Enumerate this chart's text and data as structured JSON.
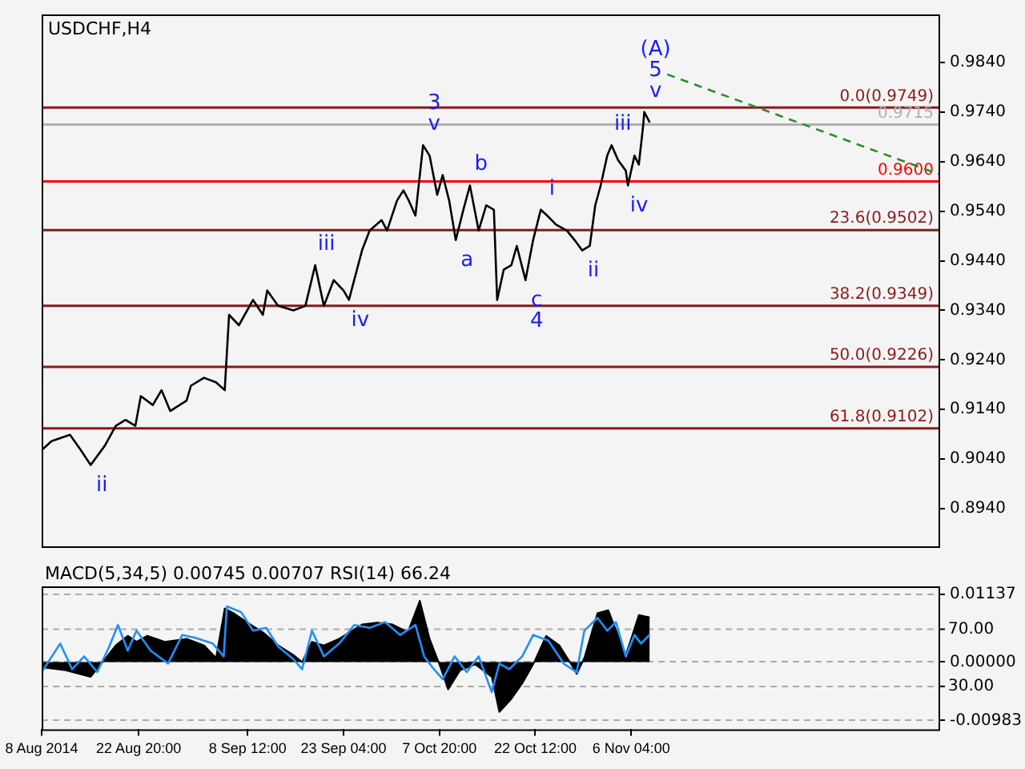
{
  "chart_data": [
    {
      "type": "line",
      "title": "USDCHF,H4",
      "xlim": [
        "2014-08-08T00:00",
        "2014-12-23T04:00"
      ],
      "ylim": [
        0.8864,
        0.9937
      ],
      "tick_labels": "y",
      "yticks": [
        {
          "value": 0.894,
          "label": "0.8940"
        },
        {
          "value": 0.904,
          "label": "0.9040"
        },
        {
          "value": 0.914,
          "label": "0.9140"
        },
        {
          "value": 0.924,
          "label": "0.9240"
        },
        {
          "value": 0.934,
          "label": "0.9340"
        },
        {
          "value": 0.944,
          "label": "0.9440"
        },
        {
          "value": 0.954,
          "label": "0.9540"
        },
        {
          "value": 0.964,
          "label": "0.9640"
        },
        {
          "value": 0.974,
          "label": "0.9740"
        },
        {
          "value": 0.984,
          "label": "0.9840"
        }
      ],
      "series": [
        {
          "type": "line",
          "color": "#000000",
          "x": [
            "2014-08-08T00:00",
            "2014-08-09T12:00",
            "2014-08-12T08:00",
            "2014-08-14T00:00",
            "2014-08-15T12:00",
            "2014-08-17T16:00",
            "2014-08-19T08:00",
            "2014-08-20T20:00",
            "2014-08-22T08:00",
            "2014-08-23T04:00",
            "2014-08-25T00:00",
            "2014-08-26T08:00",
            "2014-08-27T16:00",
            "2014-08-30T04:00",
            "2014-08-30T20:00",
            "2014-09-01T20:00",
            "2014-09-03T16:00",
            "2014-09-05T00:00",
            "2014-09-05T16:00",
            "2014-09-07T04:00",
            "2014-09-09T08:00",
            "2014-09-10T20:00",
            "2014-09-11T12:00",
            "2014-09-13T04:00",
            "2014-09-15T12:00",
            "2014-09-17T08:00",
            "2014-09-18T20:00",
            "2014-09-20T04:00",
            "2014-09-21T16:00",
            "2014-09-23T04:00",
            "2014-09-24T00:00",
            "2014-09-26T00:00",
            "2014-09-27T04:00",
            "2014-09-29T00:00",
            "2014-09-29T20:00",
            "2014-10-01T08:00",
            "2014-10-02T08:00",
            "2014-10-03T04:00",
            "2014-10-04T04:00",
            "2014-10-05T08:00",
            "2014-10-06T08:00",
            "2014-10-07T12:00",
            "2014-10-08T08:00",
            "2014-10-09T08:00",
            "2014-10-10T08:00",
            "2014-10-11T12:00",
            "2014-10-12T12:00",
            "2014-10-13T20:00",
            "2014-10-15T00:00",
            "2014-10-16T04:00",
            "2014-10-16T16:00",
            "2014-10-17T16:00",
            "2014-10-18T20:00",
            "2014-10-19T16:00",
            "2014-10-21T00:00",
            "2014-10-22T04:00",
            "2014-10-23T08:00",
            "2014-10-24T08:00",
            "2014-10-25T16:00",
            "2014-10-27T08:00",
            "2014-10-28T12:00",
            "2014-10-29T16:00",
            "2014-10-30T20:00",
            "2014-10-31T16:00",
            "2014-11-01T12:00",
            "2014-11-02T12:00",
            "2014-11-03T04:00",
            "2014-11-04T04:00",
            "2014-11-05T08:00",
            "2014-11-05T16:00",
            "2014-11-06T16:00",
            "2014-11-07T08:00",
            "2014-11-08T00:00",
            "2014-11-08T04:00",
            "2014-11-09T00:00"
          ],
          "values": [
            0.9058,
            0.9076,
            0.9089,
            0.9058,
            0.9028,
            0.9067,
            0.9107,
            0.9119,
            0.9107,
            0.9167,
            0.9149,
            0.9179,
            0.9137,
            0.9158,
            0.9188,
            0.9204,
            0.9195,
            0.9179,
            0.9331,
            0.931,
            0.9361,
            0.9331,
            0.938,
            0.9349,
            0.934,
            0.9349,
            0.9431,
            0.9349,
            0.9401,
            0.938,
            0.9361,
            0.9461,
            0.9501,
            0.9522,
            0.9501,
            0.9561,
            0.9582,
            0.9561,
            0.9531,
            0.9673,
            0.9652,
            0.9573,
            0.9613,
            0.9561,
            0.9482,
            0.9543,
            0.9592,
            0.9501,
            0.9552,
            0.9543,
            0.9361,
            0.9422,
            0.9431,
            0.947,
            0.9401,
            0.9482,
            0.9543,
            0.9531,
            0.9513,
            0.9501,
            0.9482,
            0.9461,
            0.947,
            0.9552,
            0.9592,
            0.9652,
            0.9673,
            0.9643,
            0.9622,
            0.9592,
            0.9652,
            0.9634,
            0.9713,
            0.974,
            0.9719
          ]
        },
        {
          "type": "line",
          "color": "#2e8b2e",
          "line_style": "dashed",
          "x": [
            "2014-11-11T16:00",
            "2014-12-23T04:00"
          ],
          "values": [
            0.9816,
            0.9615
          ]
        }
      ],
      "ref_lines": [
        {
          "axis": "y",
          "value": 0.9749,
          "label": "0.0(0.9749)",
          "color": "#8b1a1a"
        },
        {
          "axis": "y",
          "value": 0.9715,
          "label": "0.9715",
          "color": "#b0b0b0"
        },
        {
          "axis": "y",
          "value": 0.96,
          "label": "0.9600",
          "color": "#ff0000"
        },
        {
          "axis": "y",
          "value": 0.9502,
          "label": "23.6(0.9502)",
          "color": "#8b1a1a"
        },
        {
          "axis": "y",
          "value": 0.9349,
          "label": "38.2(0.9349)",
          "color": "#8b1a1a"
        },
        {
          "axis": "y",
          "value": 0.9226,
          "label": "50.0(0.9226)",
          "color": "#8b1a1a"
        },
        {
          "axis": "y",
          "value": 0.9102,
          "label": "61.8(0.9102)",
          "color": "#8b1a1a"
        }
      ],
      "annotations": [
        {
          "text": "v",
          "x": "2014-11-08T04:00",
          "y": 0.974
        },
        {
          "text": "5",
          "x": "2014-11-08T04:00",
          "y": 0.974
        },
        {
          "text": "(A)",
          "x": "2014-11-08T04:00",
          "y": 0.974
        },
        {
          "text": "v",
          "x": "2014-10-05T08:00",
          "y": 0.9673
        },
        {
          "text": "3",
          "x": "2014-10-05T08:00",
          "y": 0.9673
        },
        {
          "text": "a",
          "x": "2014-10-10T08:00",
          "y": 0.9482
        },
        {
          "text": "b",
          "x": "2014-10-12T12:00",
          "y": 0.9592
        },
        {
          "text": "c",
          "x": "2014-10-21T00:00",
          "y": 0.9401
        },
        {
          "text": "4",
          "x": "2014-10-21T00:00",
          "y": 0.9401
        },
        {
          "text": "i",
          "x": "2014-10-23T08:00",
          "y": 0.9543
        },
        {
          "text": "ii",
          "x": "2014-10-29T16:00",
          "y": 0.9461
        },
        {
          "text": "iii",
          "x": "2014-11-03T04:00",
          "y": 0.9673
        },
        {
          "text": "iv",
          "x": "2014-11-05T16:00",
          "y": 0.9592
        },
        {
          "text": "iii",
          "x": "2014-09-18T20:00",
          "y": 0.9431
        },
        {
          "text": "iv",
          "x": "2014-09-24T00:00",
          "y": 0.9361
        },
        {
          "text": "ii",
          "x": "2014-08-15T12:00",
          "y": 0.9028
        }
      ]
    },
    {
      "type": "area",
      "title": "MACD(5,34,5) 0.00745 0.00707 RSI(14) 66.24",
      "xlim": [
        "2014-08-08T00:00",
        "2014-12-23T04:00"
      ],
      "ylim": [
        -0.0113,
        0.0127
      ],
      "y2lim": [
        0,
        100
      ],
      "grid": "y",
      "xticks": [
        {
          "value": "2014-08-08T00:00",
          "label": "8 Aug 2014"
        },
        {
          "value": "2014-08-22T20:00",
          "label": "22 Aug 20:00"
        },
        {
          "value": "2014-09-08T12:00",
          "label": "8 Sep 12:00"
        },
        {
          "value": "2014-09-23T04:00",
          "label": "23 Sep 04:00"
        },
        {
          "value": "2014-10-07T20:00",
          "label": "7 Oct 20:00"
        },
        {
          "value": "2014-10-22T12:00",
          "label": "22 Oct 12:00"
        },
        {
          "value": "2014-11-06T04:00",
          "label": "6 Nov 04:00"
        }
      ],
      "yticks": [
        0.01137,
        {
          "value": 0,
          "label": "0.00000"
        },
        -0.00983
      ],
      "y2ticks": [
        {
          "value": 70,
          "label": "70.00"
        },
        {
          "value": 30,
          "label": "30.00"
        }
      ],
      "series": [
        {
          "type": "area",
          "color": "#000000",
          "x": [
            "2014-08-08T00:00",
            "2014-08-11T16:00",
            "2014-08-15T12:00",
            "2014-08-17T08:00",
            "2014-08-19T08:00",
            "2014-08-21T04:00",
            "2014-08-22T12:00",
            "2014-08-24T04:00",
            "2014-08-26T20:00",
            "2014-08-30T04:00",
            "2014-09-01T20:00",
            "2014-09-03T16:00",
            "2014-09-05T00:00",
            "2014-09-06T08:00",
            "2014-09-08T12:00",
            "2014-09-10T20:00",
            "2014-09-13T04:00",
            "2014-09-15T12:00",
            "2014-09-16T20:00",
            "2014-09-18T08:00",
            "2014-09-20T04:00",
            "2014-09-22T12:00",
            "2014-09-26T00:00",
            "2014-09-28T08:00",
            "2014-09-30T16:00",
            "2014-10-03T00:00",
            "2014-10-04T20:00",
            "2014-10-06T08:00",
            "2014-10-07T20:00",
            "2014-10-09T04:00",
            "2014-10-11T00:00",
            "2014-10-13T08:00",
            "2014-10-15T20:00",
            "2014-10-17T00:00",
            "2014-10-18T20:00",
            "2014-10-20T12:00",
            "2014-10-22T04:00",
            "2014-10-24T04:00",
            "2014-10-26T04:00",
            "2014-10-28T00:00",
            "2014-10-28T20:00",
            "2014-10-30T00:00",
            "2014-11-01T00:00",
            "2014-11-02T16:00",
            "2014-11-04T04:00",
            "2014-11-05T08:00",
            "2014-11-06T04:00",
            "2014-11-07T08:00",
            "2014-11-09T00:00"
          ],
          "values": [
            -0.0009,
            -0.0014,
            -0.0025,
            0,
            0.0028,
            0.0044,
            0.0034,
            0.0044,
            0.0034,
            0.0039,
            0.0028,
            0.0007,
            0.009,
            0.0082,
            0.0066,
            0.005,
            0.0028,
            0.0012,
            0,
            0.0034,
            0.0028,
            0.0039,
            0.0063,
            0.0066,
            0.0063,
            0.005,
            0.0103,
            0.0039,
            -0.0004,
            -0.0046,
            -0.0014,
            -0.0004,
            -0.0025,
            -0.0084,
            -0.0062,
            -0.0036,
            -0.0004,
            0.0044,
            0.0028,
            -0.0004,
            -0.002,
            0.0007,
            0.0082,
            0.0087,
            0.0044,
            0.0012,
            0.0039,
            0.0079,
            0.0075
          ]
        },
        {
          "type": "line",
          "axis": "y2",
          "color": "#1e90ff",
          "x": [
            "2014-08-08T00:00",
            "2014-08-10T20:00",
            "2014-08-12T16:00",
            "2014-08-14T12:00",
            "2014-08-16T12:00",
            "2014-08-18T08:00",
            "2014-08-19T16:00",
            "2014-08-21T04:00",
            "2014-08-22T12:00",
            "2014-08-24T16:00",
            "2014-08-27T08:00",
            "2014-08-29T12:00",
            "2014-08-31T12:00",
            "2014-09-03T04:00",
            "2014-09-04T20:00",
            "2014-09-05T08:00",
            "2014-09-07T12:00",
            "2014-09-09T08:00",
            "2014-09-11T08:00",
            "2014-09-13T04:00",
            "2014-09-15T12:00",
            "2014-09-16T20:00",
            "2014-09-18T08:00",
            "2014-09-20T04:00",
            "2014-09-22T12:00",
            "2014-09-24T20:00",
            "2014-09-27T04:00",
            "2014-09-29T12:00",
            "2014-10-01T20:00",
            "2014-10-04T04:00",
            "2014-10-05T12:00",
            "2014-10-07T00:00",
            "2014-10-08T08:00",
            "2014-10-10T04:00",
            "2014-10-12T00:00",
            "2014-10-13T20:00",
            "2014-10-15T20:00",
            "2014-10-17T00:00",
            "2014-10-18T12:00",
            "2014-10-20T12:00",
            "2014-10-22T04:00",
            "2014-10-24T12:00",
            "2014-10-26T20:00",
            "2014-10-28T20:00",
            "2014-10-30T00:00",
            "2014-11-01T00:00",
            "2014-11-02T12:00",
            "2014-11-03T20:00",
            "2014-11-05T08:00",
            "2014-11-06T16:00",
            "2014-11-07T16:00",
            "2014-11-09T00:00"
          ],
          "values": [
            40,
            60,
            42,
            51,
            40,
            58,
            73,
            55,
            69,
            55,
            46,
            66,
            64,
            60,
            51,
            86,
            82,
            69,
            71,
            58,
            49,
            42,
            69,
            51,
            60,
            73,
            71,
            75,
            66,
            73,
            51,
            42,
            35,
            51,
            40,
            51,
            26,
            46,
            42,
            51,
            66,
            62,
            46,
            40,
            69,
            78,
            69,
            75,
            51,
            66,
            60,
            66.24
          ]
        }
      ]
    }
  ]
}
